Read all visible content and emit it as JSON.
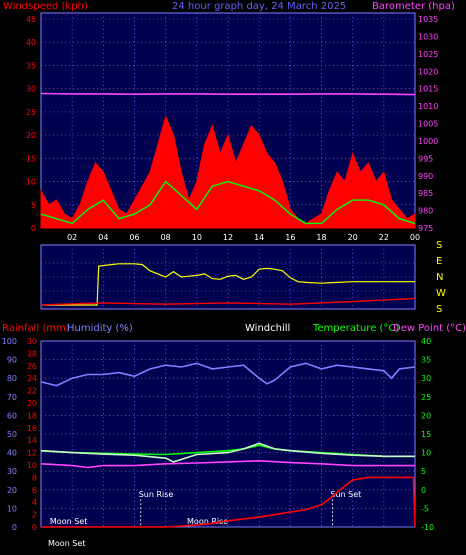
{
  "chart_data": [
    {
      "type": "line",
      "header": {
        "left": "Windspeed (kph)",
        "center": "24 hour graph day, 24 March 2025",
        "right": "Barometer (hpa)"
      },
      "x_ticks": [
        "02",
        "04",
        "06",
        "08",
        "10",
        "12",
        "14",
        "16",
        "18",
        "20",
        "22",
        "00"
      ],
      "ylim_left": [
        0,
        45
      ],
      "yticks_left": [
        0,
        5,
        10,
        15,
        20,
        25,
        30,
        35,
        40,
        45
      ],
      "ylim_right": [
        975,
        1035
      ],
      "yticks_right": [
        975,
        980,
        985,
        990,
        995,
        1000,
        1005,
        1010,
        1015,
        1020,
        1025,
        1030,
        1035
      ],
      "series": [
        {
          "key": "barometer",
          "axis": "right",
          "color": "#ff44ff",
          "x": [
            0,
            2,
            4,
            6,
            8,
            10,
            12,
            14,
            16,
            18,
            20,
            22,
            24
          ],
          "values": [
            1013.6,
            1013.5,
            1013.5,
            1013.4,
            1013.5,
            1013.5,
            1013.4,
            1013.4,
            1013.4,
            1013.5,
            1013.5,
            1013.4,
            1013.3
          ]
        },
        {
          "key": "gust",
          "axis": "left",
          "color": "#ff0000",
          "x": [
            0,
            0.5,
            1,
            1.5,
            2,
            2.5,
            3,
            3.5,
            4,
            4.5,
            5,
            5.5,
            6,
            6.5,
            7,
            7.5,
            8,
            8.5,
            9,
            9.5,
            10,
            10.5,
            11,
            11.5,
            12,
            12.5,
            13,
            13.5,
            14,
            14.5,
            15,
            15.5,
            16,
            16.5,
            17,
            17.5,
            18,
            18.5,
            19,
            19.5,
            20,
            20.5,
            21,
            21.5,
            22,
            22.5,
            23,
            23.5,
            24
          ],
          "values": [
            8,
            5,
            6,
            3,
            2,
            5,
            10,
            14,
            12,
            8,
            4,
            3,
            6,
            9,
            12,
            18,
            24,
            20,
            12,
            6,
            10,
            18,
            22,
            16,
            20,
            14,
            18,
            22,
            20,
            16,
            14,
            10,
            4,
            2,
            1,
            2,
            3,
            8,
            12,
            10,
            16,
            12,
            14,
            10,
            12,
            6,
            4,
            2,
            3
          ]
        },
        {
          "key": "average",
          "axis": "left",
          "color": "#00ff00",
          "x": [
            0,
            1,
            2,
            3,
            4,
            5,
            6,
            7,
            8,
            9,
            10,
            11,
            12,
            13,
            14,
            15,
            16,
            17,
            18,
            19,
            20,
            21,
            22,
            23,
            24
          ],
          "values": [
            3,
            2,
            1,
            4,
            6,
            2,
            3,
            5,
            10,
            7,
            4,
            9,
            10,
            9,
            8,
            6,
            3,
            1,
            1,
            4,
            6,
            6,
            5,
            2,
            1
          ]
        }
      ]
    },
    {
      "type": "line",
      "compass": [
        "S",
        "E",
        "N",
        "W",
        "S"
      ],
      "series": [
        {
          "key": "direction",
          "color": "#ffff00",
          "x": [
            0,
            3.6,
            3.7,
            4.5,
            5,
            5.5,
            6,
            6.5,
            7,
            7.5,
            8,
            8.5,
            9,
            9.5,
            10,
            10.5,
            11,
            11.5,
            12,
            12.5,
            13,
            13.5,
            14,
            14.5,
            15,
            15.5,
            16,
            16.5,
            17,
            18,
            19,
            20,
            21,
            22,
            23,
            24
          ],
          "values": [
            0,
            0,
            250,
            260,
            265,
            265,
            265,
            260,
            220,
            200,
            180,
            215,
            180,
            185,
            190,
            200,
            170,
            165,
            185,
            190,
            165,
            180,
            230,
            235,
            230,
            220,
            175,
            150,
            145,
            140,
            145,
            150,
            150,
            150,
            150,
            150
          ]
        },
        {
          "key": "speed",
          "color": "#ff0000",
          "x": [
            0,
            4,
            8,
            12,
            16,
            20,
            24
          ],
          "values": [
            5,
            8,
            6,
            8,
            6,
            10,
            15
          ]
        }
      ]
    },
    {
      "type": "line",
      "header": {
        "rainfall": "Rainfall (mm)",
        "humidity": "Humidity (%)",
        "windchill": "Windchill",
        "temperature": "Temperature (°C)",
        "dewpoint": "Dew Point (°C)"
      },
      "yticks_humidity": [
        0,
        10,
        20,
        30,
        40,
        50,
        60,
        70,
        80,
        90,
        100
      ],
      "yticks_rain": [
        0,
        2,
        4,
        6,
        8,
        10,
        12,
        14,
        16,
        18,
        20,
        22,
        24,
        26,
        28,
        30
      ],
      "yticks_temp": [
        -10,
        -5,
        0,
        5,
        10,
        15,
        20,
        25,
        30,
        35,
        40
      ],
      "annotations": [
        {
          "text": "Moon Set",
          "x": 0.7,
          "y": 0.5
        },
        {
          "text": "Sun Rise",
          "x": 6.4,
          "y": 4.8
        },
        {
          "text": "Moon Rise",
          "x": 9.5,
          "y": 0.5
        },
        {
          "text": "Sun Set",
          "x": 18.7,
          "y": 4.8
        }
      ],
      "bottom_label": "Moon Set",
      "series": [
        {
          "key": "humidity",
          "axis": "humidity",
          "color": "#8080ff",
          "x": [
            0,
            1,
            2,
            3,
            4,
            5,
            6,
            7,
            8,
            9,
            10,
            11,
            12,
            13,
            14,
            14.5,
            15,
            16,
            17,
            18,
            19,
            20,
            21,
            22,
            22.5,
            23,
            24
          ],
          "values": [
            78,
            76,
            80,
            82,
            82,
            83,
            81,
            85,
            87,
            86,
            88,
            85,
            86,
            87,
            80,
            77,
            79,
            86,
            88,
            85,
            87,
            86,
            85,
            84,
            80,
            85,
            86
          ]
        },
        {
          "key": "temperature",
          "axis": "temp",
          "color": "#00ff00",
          "x": [
            0,
            2,
            4,
            6,
            8,
            10,
            12,
            13,
            14,
            15,
            16,
            18,
            20,
            22,
            24
          ],
          "values": [
            10.5,
            10,
            9.8,
            9.6,
            9.5,
            10,
            10.5,
            11,
            12,
            11,
            10.5,
            10,
            9.5,
            9,
            9
          ]
        },
        {
          "key": "windchill",
          "axis": "temp",
          "color": "#c8ffc8",
          "x": [
            0,
            2,
            4,
            6,
            8,
            8.5,
            10,
            12,
            13,
            14,
            15,
            16,
            18,
            20,
            22,
            24
          ],
          "values": [
            10.5,
            10,
            9.6,
            9.3,
            8.5,
            7.5,
            9.5,
            10,
            11,
            12.5,
            11,
            10.5,
            9.8,
            9.3,
            9,
            9
          ]
        },
        {
          "key": "dewpoint",
          "axis": "temp",
          "color": "#ff44ff",
          "x": [
            0,
            2,
            3,
            4,
            6,
            8,
            10,
            12,
            14,
            16,
            18,
            20,
            22,
            24
          ],
          "values": [
            7,
            6.5,
            6,
            6.5,
            6.5,
            7,
            7.2,
            7.5,
            7.8,
            7.3,
            7,
            6.5,
            6.5,
            6.5
          ]
        },
        {
          "key": "rainfall",
          "axis": "rain",
          "color": "#ff0000",
          "x": [
            0,
            8,
            10,
            11,
            12,
            13,
            14,
            15,
            16,
            17,
            18,
            18.5,
            19,
            19.5,
            20,
            21,
            22,
            23,
            23.9,
            24
          ],
          "values": [
            0,
            0,
            0.3,
            0.6,
            1,
            1.3,
            1.6,
            2,
            2.4,
            2.8,
            3.6,
            4.5,
            5.6,
            6.6,
            7.6,
            8,
            8,
            8,
            8,
            0
          ]
        }
      ]
    }
  ]
}
